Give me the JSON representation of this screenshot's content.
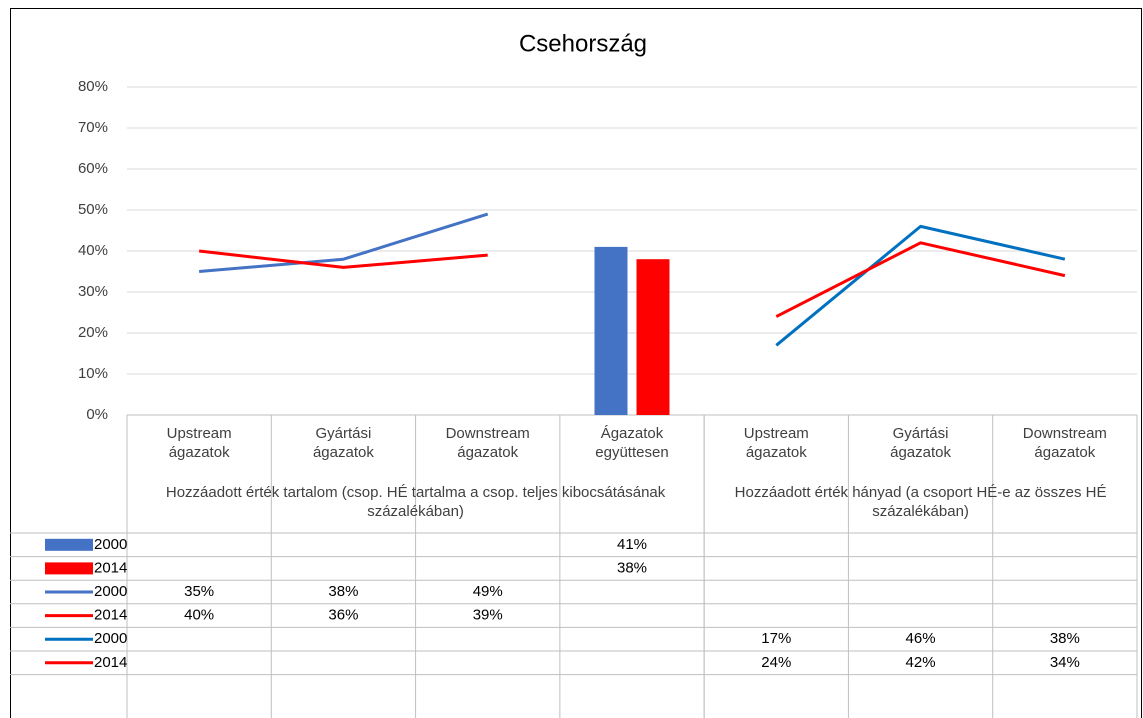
{
  "chart_data": {
    "type": "combo",
    "title": "Csehország",
    "categories": [
      "Upstream ágazatok",
      "Gyártási ágazatok",
      "Downstream ágazatok",
      "Ágazatok együttesen",
      "Upstream ágazatok",
      "Gyártási ágazatok",
      "Downstream ágazatok"
    ],
    "category_groups": [
      {
        "label": "Hozzáadott érték tartalom (csop. HÉ tartalma a csop. teljes kibocsátásának százalékában)",
        "span": 4
      },
      {
        "label": "Hozzáadott érték hányad (a csoport HÉ-e az összes HÉ százalékában)",
        "span": 3
      }
    ],
    "series": [
      {
        "name": "2000",
        "type": "bar",
        "color": "#4472c4",
        "values": [
          null,
          null,
          null,
          41,
          null,
          null,
          null
        ],
        "value_labels": [
          null,
          null,
          null,
          "41%",
          null,
          null,
          null
        ]
      },
      {
        "name": "2014",
        "type": "bar",
        "color": "#ff0000",
        "values": [
          null,
          null,
          null,
          38,
          null,
          null,
          null
        ],
        "value_labels": [
          null,
          null,
          null,
          "38%",
          null,
          null,
          null
        ]
      },
      {
        "name": "2000",
        "type": "line",
        "color": "#4472c4",
        "values": [
          35,
          38,
          49,
          null,
          null,
          null,
          null
        ],
        "value_labels": [
          "35%",
          "38%",
          "49%",
          null,
          null,
          null,
          null
        ]
      },
      {
        "name": "2014",
        "type": "line",
        "color": "#ff0000",
        "values": [
          40,
          36,
          39,
          null,
          null,
          null,
          null
        ],
        "value_labels": [
          "40%",
          "36%",
          "39%",
          null,
          null,
          null,
          null
        ]
      },
      {
        "name": "2000",
        "type": "line",
        "color": "#0070c0",
        "values": [
          null,
          null,
          null,
          null,
          17,
          46,
          38
        ],
        "value_labels": [
          null,
          null,
          null,
          null,
          "17%",
          "46%",
          "38%"
        ]
      },
      {
        "name": "2014",
        "type": "line",
        "color": "#ff0000",
        "values": [
          null,
          null,
          null,
          null,
          24,
          42,
          34
        ],
        "value_labels": [
          null,
          null,
          null,
          null,
          "24%",
          "42%",
          "34%"
        ]
      }
    ],
    "ylim": [
      0,
      80
    ],
    "yticks": [
      {
        "value": 0,
        "label": "0%"
      },
      {
        "value": 10,
        "label": "10%"
      },
      {
        "value": 20,
        "label": "20%"
      },
      {
        "value": 30,
        "label": "30%"
      },
      {
        "value": 40,
        "label": "40%"
      },
      {
        "value": 50,
        "label": "50%"
      },
      {
        "value": 60,
        "label": "60%"
      },
      {
        "value": 70,
        "label": "70%"
      },
      {
        "value": 80,
        "label": "80%"
      }
    ],
    "grid": true
  }
}
